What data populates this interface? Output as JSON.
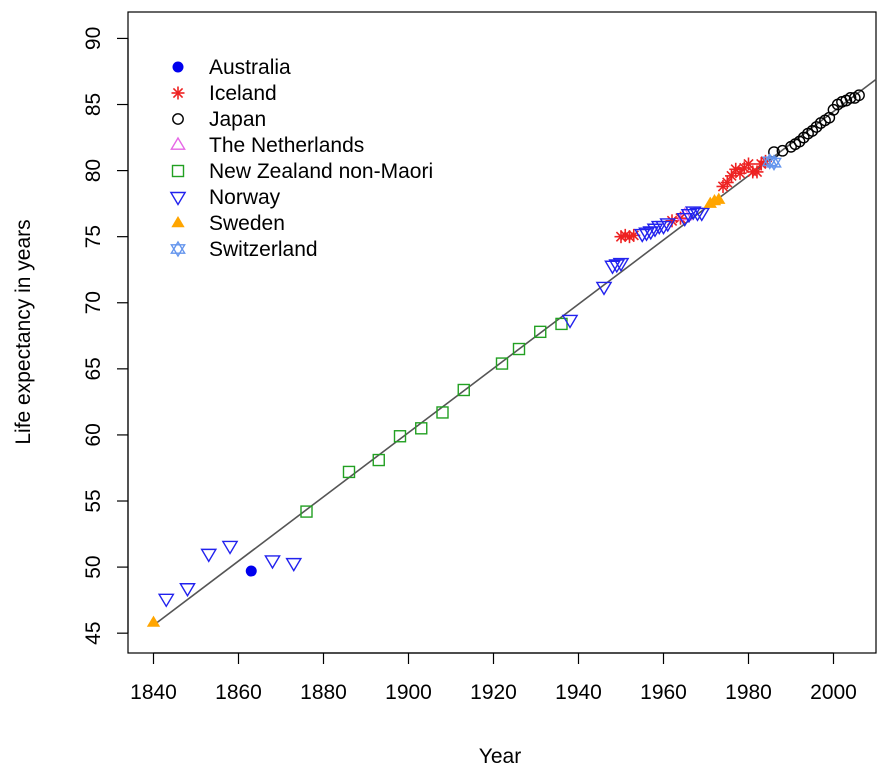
{
  "chart_data": {
    "type": "scatter",
    "title": "",
    "xlabel": "Year",
    "ylabel": "Life expectancy in years",
    "xlim": [
      1834,
      2010
    ],
    "ylim": [
      43.5,
      92
    ],
    "xticks": [
      1840,
      1860,
      1880,
      1900,
      1920,
      1940,
      1960,
      1980,
      2000
    ],
    "yticks": [
      45,
      50,
      55,
      60,
      65,
      70,
      75,
      80,
      85,
      90
    ],
    "grid": false,
    "legend_position": "top-left",
    "trend_line": {
      "label": "",
      "points": [
        [
          1840,
          45.6
        ],
        [
          2010,
          86.9
        ]
      ],
      "color": "#555555"
    },
    "series": [
      {
        "name": "Australia",
        "marker": "filled-circle",
        "color": "#0000ee",
        "points": [
          [
            1863,
            49.7
          ]
        ]
      },
      {
        "name": "Iceland",
        "marker": "asterisk",
        "color": "#ee2222",
        "points": [
          [
            1950,
            75.0
          ],
          [
            1951,
            75.1
          ],
          [
            1952,
            75.0
          ],
          [
            1953,
            75.1
          ],
          [
            1962,
            76.2
          ],
          [
            1964,
            76.4
          ],
          [
            1974,
            78.8
          ],
          [
            1975,
            79.1
          ],
          [
            1976,
            79.6
          ],
          [
            1977,
            80.1
          ],
          [
            1978,
            79.8
          ],
          [
            1979,
            80.2
          ],
          [
            1980,
            80.5
          ],
          [
            1981,
            79.9
          ],
          [
            1982,
            79.9
          ],
          [
            1983,
            80.5
          ],
          [
            1984,
            80.7
          ]
        ]
      },
      {
        "name": "Japan",
        "marker": "open-circle",
        "color": "#000000",
        "points": [
          [
            1986,
            81.4
          ],
          [
            1988,
            81.5
          ],
          [
            1990,
            81.8
          ],
          [
            1991,
            82.0
          ],
          [
            1992,
            82.2
          ],
          [
            1993,
            82.5
          ],
          [
            1994,
            82.8
          ],
          [
            1995,
            83.0
          ],
          [
            1996,
            83.3
          ],
          [
            1997,
            83.6
          ],
          [
            1998,
            83.8
          ],
          [
            1999,
            84.0
          ],
          [
            2000,
            84.6
          ],
          [
            2001,
            85.0
          ],
          [
            2002,
            85.2
          ],
          [
            2003,
            85.3
          ],
          [
            2004,
            85.5
          ],
          [
            2005,
            85.5
          ],
          [
            2006,
            85.7
          ]
        ]
      },
      {
        "name": "The Netherlands",
        "marker": "open-triangle-up",
        "color": "#e666e6",
        "points": [
          [
            1965,
            76.6
          ]
        ]
      },
      {
        "name": "New Zealand non-Maori",
        "marker": "open-square",
        "color": "#22a022",
        "points": [
          [
            1876,
            54.2
          ],
          [
            1886,
            57.2
          ],
          [
            1893,
            58.1
          ],
          [
            1898,
            59.9
          ],
          [
            1903,
            60.5
          ],
          [
            1908,
            61.7
          ],
          [
            1913,
            63.4
          ],
          [
            1922,
            65.4
          ],
          [
            1926,
            66.5
          ],
          [
            1931,
            67.8
          ],
          [
            1936,
            68.4
          ]
        ]
      },
      {
        "name": "Norway",
        "marker": "open-triangle-down",
        "color": "#2222ee",
        "points": [
          [
            1843,
            47.6
          ],
          [
            1848,
            48.4
          ],
          [
            1853,
            51.0
          ],
          [
            1858,
            51.6
          ],
          [
            1868,
            50.5
          ],
          [
            1873,
            50.3
          ],
          [
            1938,
            68.7
          ],
          [
            1946,
            71.2
          ],
          [
            1948,
            72.8
          ],
          [
            1949,
            72.9
          ],
          [
            1950,
            73.0
          ],
          [
            1955,
            75.2
          ],
          [
            1956,
            75.3
          ],
          [
            1957,
            75.4
          ],
          [
            1958,
            75.6
          ],
          [
            1959,
            75.8
          ],
          [
            1960,
            75.8
          ],
          [
            1961,
            76.0
          ],
          [
            1965,
            76.4
          ],
          [
            1966,
            76.7
          ],
          [
            1967,
            76.9
          ],
          [
            1968,
            76.8
          ],
          [
            1969,
            76.8
          ]
        ]
      },
      {
        "name": "Sweden",
        "marker": "filled-triangle-up",
        "color": "#ffa500",
        "points": [
          [
            1840,
            45.8
          ],
          [
            1971,
            77.5
          ],
          [
            1972,
            77.7
          ],
          [
            1973,
            77.8
          ]
        ]
      },
      {
        "name": "Switzerland",
        "marker": "star-of-david",
        "color": "#6495ed",
        "points": [
          [
            1985,
            80.7
          ],
          [
            1986,
            80.6
          ]
        ]
      }
    ]
  }
}
